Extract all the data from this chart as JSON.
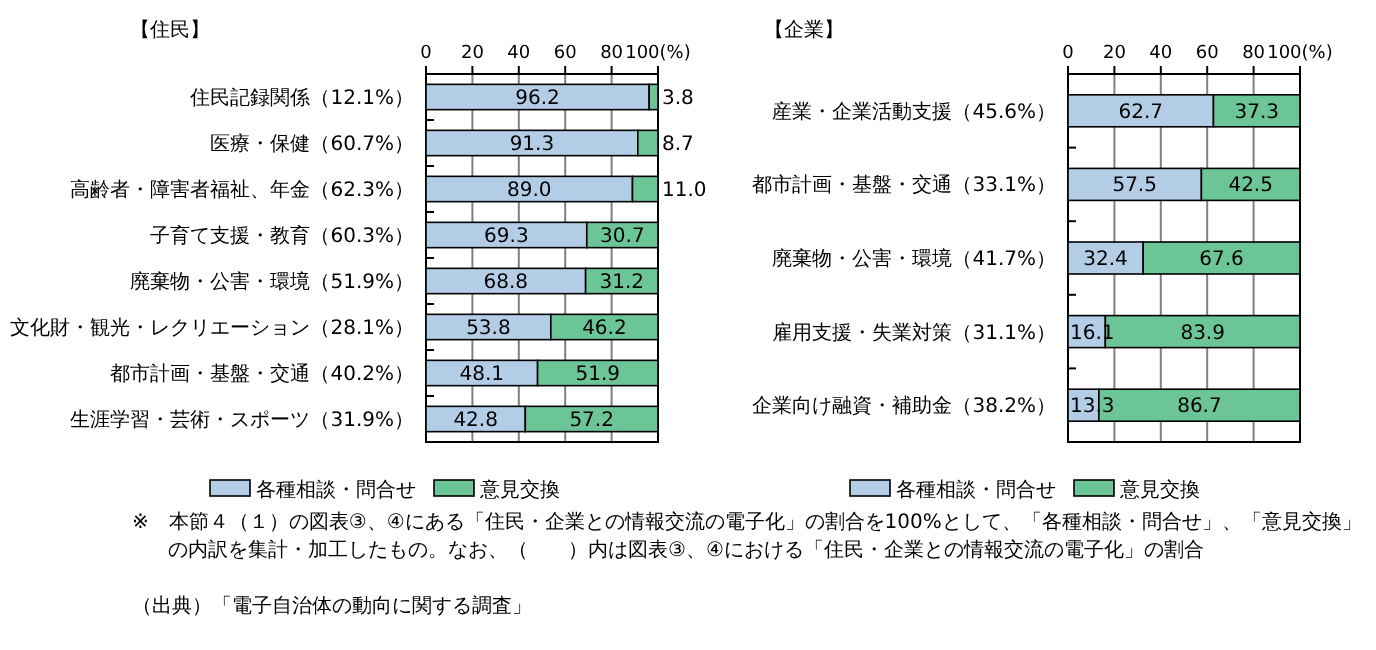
{
  "chart_data": [
    {
      "type": "bar",
      "orientation": "horizontal",
      "stacked": true,
      "title": "【住民】",
      "categories": [
        "住民記録関係（12.1%）",
        "医療・保健（60.7%）",
        "高齢者・障害者福祉、年金（62.3%）",
        "子育て支援・教育（60.3%）",
        "廃棄物・公害・環境（51.9%）",
        "文化財・観光・レクリエーション（28.1%）",
        "都市計画・基盤・交通（40.2%）",
        "生涯学習・芸術・スポーツ（31.9%）"
      ],
      "series": [
        {
          "name": "各種相談・問合せ",
          "color": "#b4cde6",
          "values": [
            96.2,
            91.3,
            89.0,
            69.3,
            68.8,
            53.8,
            48.1,
            42.8
          ],
          "value_labels": [
            "96.2",
            "91.3",
            "89.0",
            "69.3",
            "68.8",
            "53.8",
            "48.1",
            "42.8"
          ]
        },
        {
          "name": "意見交換",
          "color": "#6cc596",
          "values": [
            3.8,
            8.7,
            11.0,
            30.7,
            31.2,
            46.2,
            51.9,
            57.2
          ],
          "value_labels": [
            "3.8",
            "8.7",
            "11.0",
            "30.7",
            "31.2",
            "46.2",
            "51.9",
            "57.2"
          ]
        }
      ],
      "xlim": [
        0,
        100
      ],
      "xticks": [
        0,
        20,
        40,
        60,
        80,
        {
          "value": 100,
          "label": "100(%)"
        }
      ],
      "grid": "x",
      "legend": "bottom",
      "annotations": [
        "※　本節４（１）の図表③、④にある「住民・企業との情報交流の電子化」の割合を100%として、「各種相談・問合せ」、「意見交換」の内訳を集計・加工したもの。なお、（　　）内は図表③、④における「住民・企業との情報交流の電子化」の割合",
        "（出典）「電子自治体の動向に関する調査」"
      ]
    },
    {
      "type": "bar",
      "orientation": "horizontal",
      "stacked": true,
      "title": "【企業】",
      "categories": [
        "産業・企業活動支援（45.6%）",
        "都市計画・基盤・交通（33.1%）",
        "廃棄物・公害・環境（41.7%）",
        "雇用支援・失業対策（31.1%）",
        "企業向け融資・補助金（38.2%）"
      ],
      "series": [
        {
          "name": "各種相談・問合せ",
          "color": "#b4cde6",
          "values": [
            62.7,
            57.5,
            32.4,
            16.1,
            13.3
          ],
          "value_labels": [
            "62.7",
            "57.5",
            "32.4",
            "16.1",
            "13.3"
          ]
        },
        {
          "name": "意見交換",
          "color": "#6cc596",
          "values": [
            37.3,
            42.5,
            67.6,
            83.9,
            86.7
          ],
          "value_labels": [
            "37.3",
            "42.5",
            "67.6",
            "83.9",
            "86.7"
          ]
        }
      ],
      "xlim": [
        0,
        100
      ],
      "xticks": [
        0,
        20,
        40,
        60,
        80,
        {
          "value": 100,
          "label": "100(%)"
        }
      ],
      "grid": "x",
      "legend": "bottom"
    }
  ]
}
